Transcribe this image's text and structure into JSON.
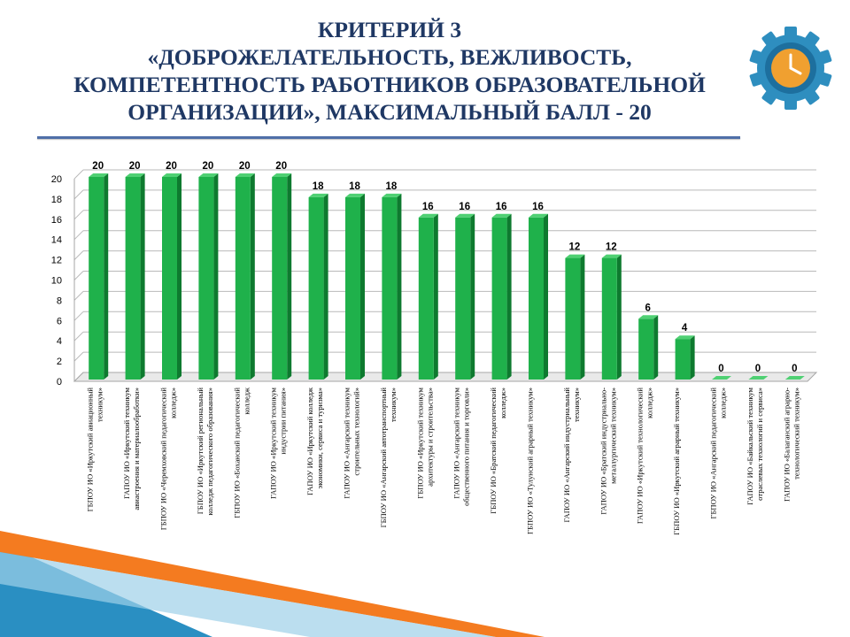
{
  "slide": {
    "title_lines": [
      "КРИТЕРИЙ 3",
      "«ДОБРОЖЕЛАТЕЛЬНОСТЬ, ВЕЖЛИВОСТЬ,",
      "КОМПЕТЕНТНОСТЬ РАБОТНИКОВ ОБРАЗОВАТЕЛЬНОЙ",
      "ОРГАНИЗАЦИИ», МАКСИМАЛЬНЫЙ БАЛЛ - 20"
    ],
    "colors": {
      "title": "#1f3864",
      "bar": "#1fb14b",
      "bar_dark": "#0e7a2f",
      "gear": "#2e8ebf",
      "clock": "#f0a030",
      "deco_orange": "#f47b20",
      "deco_blue": "#2a8fc2"
    },
    "icon": "gear-clock-icon"
  },
  "chart_data": {
    "type": "bar",
    "title": "",
    "xlabel": "",
    "ylabel": "",
    "ylim": [
      0,
      20
    ],
    "yticks": [
      0,
      2,
      4,
      6,
      8,
      10,
      12,
      14,
      16,
      18,
      20
    ],
    "grid": true,
    "data_labels": true,
    "categories": [
      [
        "ГБПОУ ИО «Иркутский авиационный",
        "техникум»"
      ],
      [
        "ГАПОУ ИО «Иркутский техникум",
        "авиастроения и материалообработки»"
      ],
      [
        "ГБПОУ ИО «Черемховский педагогический",
        "колледж»"
      ],
      [
        "ГБПОУ ИО «Иркутский региональный",
        "колледж педагогического образования»"
      ],
      [
        "ГБПОУ ИО «Боханский педагогический",
        "колледж"
      ],
      [
        "ГАПОУ ИО «Иркутский техникум",
        "индустрии питания»"
      ],
      [
        "ГАПОУ ИО «Иркутский колледж",
        "экономики, сервиса и туризма»"
      ],
      [
        "ГАПОУ ИО «Ангарский техникум",
        "строительных технологий»"
      ],
      [
        "ГБПОУ ИО «Ангарский автотранспортный",
        "техникум»"
      ],
      [
        "ГБПОУ ИО «Иркутский техникум",
        "архитектуры и строительства»"
      ],
      [
        "ГАПОУ ИО «Ангарский техникум",
        "общественного питания и торговли»"
      ],
      [
        "ГБПОУ ИО «Братский педагогический",
        "колледж»"
      ],
      [
        "ГБПОУ ИО «Тулунский аграрный техникум»"
      ],
      [
        "ГАПОУ ИО «Ангарский индустриальный",
        "техникум»"
      ],
      [
        "ГАПОУ ИО «Братский индустриально-",
        "металлургический техникум»"
      ],
      [
        "ГАПОУ ИО «Иркутский технологический",
        "колледж»"
      ],
      [
        "ГБПОУ ИО «Иркутский аграрный техникум»"
      ],
      [
        "ГБПОУ ИО «Ангарский педагогический",
        "колледж»"
      ],
      [
        "ГАПОУ ИО «Байкальский техникум",
        "отраслевых технологий и сервиса»"
      ],
      [
        "ГАПОУ ИО «Балаганский аграрно-",
        "технологический техникум»"
      ]
    ],
    "values": [
      20,
      20,
      20,
      20,
      20,
      20,
      18,
      18,
      18,
      16,
      16,
      16,
      16,
      12,
      12,
      6,
      4,
      0,
      0,
      0
    ]
  }
}
